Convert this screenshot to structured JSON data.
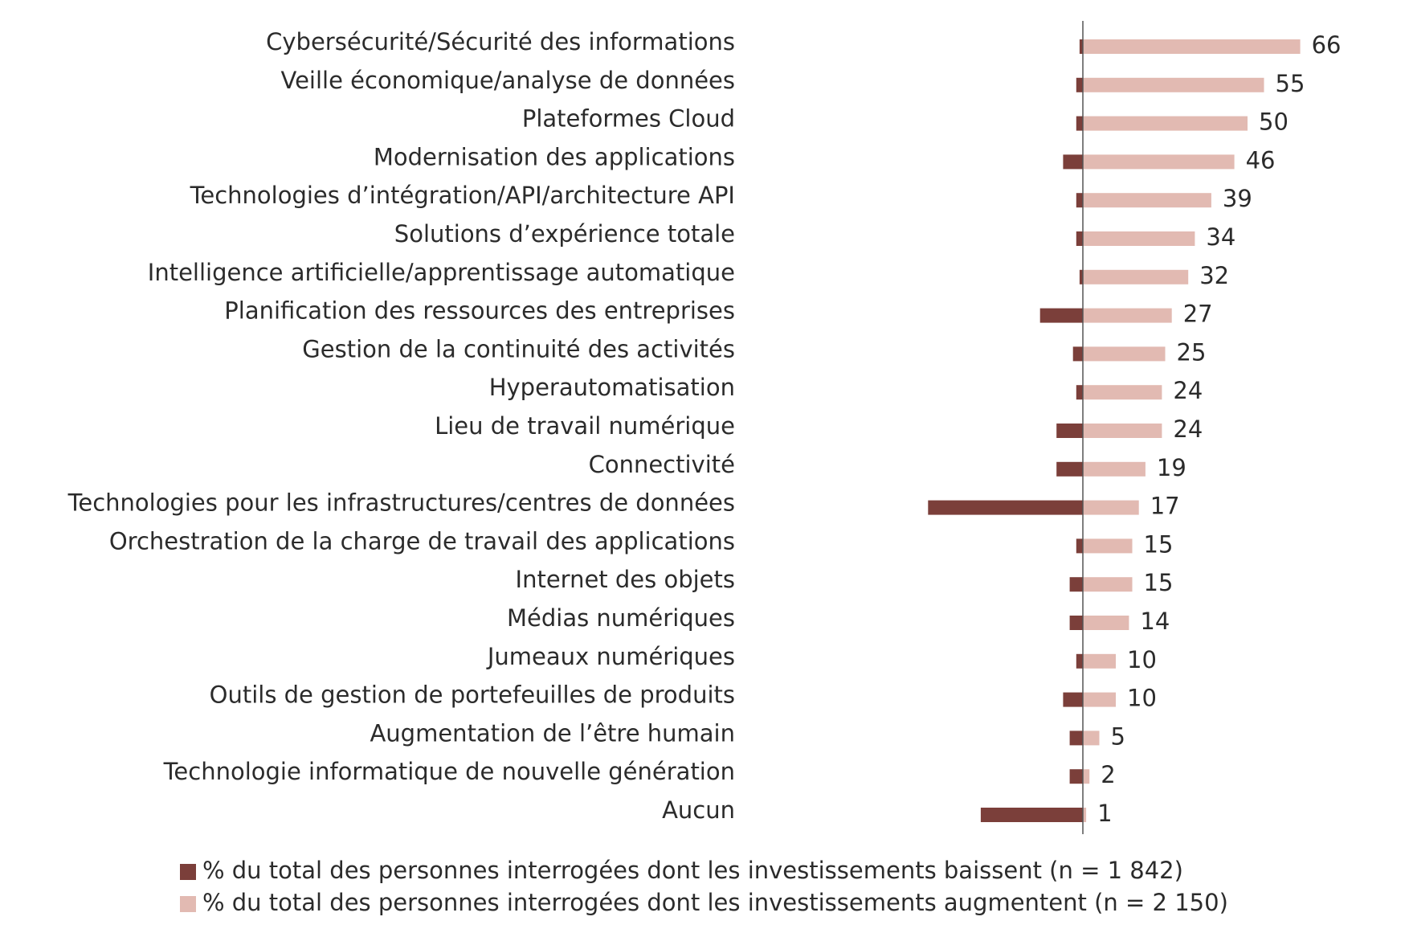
{
  "chart_data": {
    "type": "diverging-bar",
    "categories": [
      "Cybersécurité/Sécurité des informations",
      "Veille économique/analyse de données",
      "Plateformes Cloud",
      "Modernisation des applications",
      "Technologies d’intégration/API/architecture API",
      "Solutions d’expérience totale",
      "Intelligence artificielle/apprentissage automatique",
      "Planification des ressources des entreprises",
      "Gestion de la continuité des activités",
      "Hyperautomatisation",
      "Lieu de travail numérique",
      "Connectivité",
      "Technologies pour les infrastructures/centres de données",
      "Orchestration de la charge de travail des applications",
      "Internet des objets",
      "Médias numériques",
      "Jumeaux numériques",
      "Outils de gestion de portefeuilles de produits",
      "Augmentation de l’être humain",
      "Technologie informatique de nouvelle génération",
      "Aucun"
    ],
    "series": [
      {
        "name": "% du total des personnes interrogées dont les investissements baissent (n = 1 842)",
        "color": "#7b3f3a",
        "values": [
          -1,
          -2,
          -2,
          -6,
          -2,
          -2,
          -1,
          -13,
          -3,
          -2,
          -8,
          -8,
          -47,
          -2,
          -4,
          -4,
          -2,
          -6,
          -4,
          -4,
          -31
        ]
      },
      {
        "name": "% du total des personnes interrogées dont les investissements augmentent (n = 2 150)",
        "color": "#e2bab2",
        "values": [
          66,
          55,
          50,
          46,
          39,
          34,
          32,
          27,
          25,
          24,
          24,
          19,
          17,
          15,
          15,
          14,
          10,
          10,
          5,
          2,
          1
        ]
      }
    ],
    "value_labels_series": 1
  }
}
